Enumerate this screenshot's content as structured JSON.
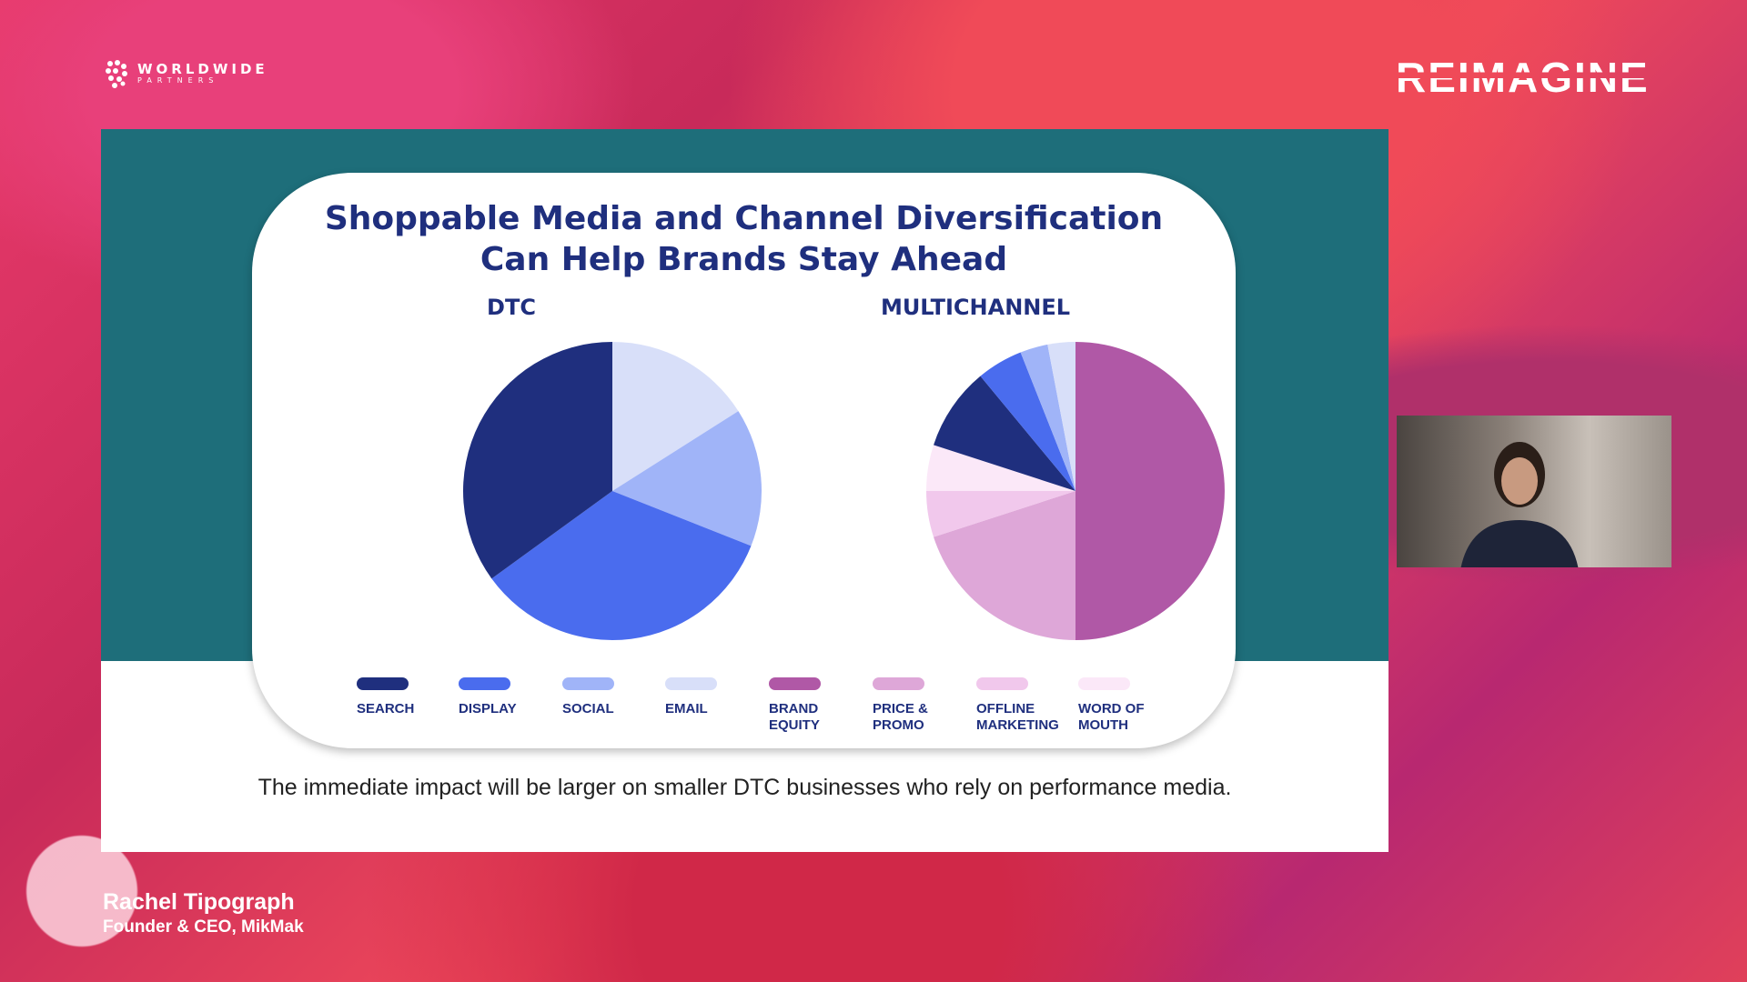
{
  "logo": {
    "line1": "WORLDWIDE",
    "line2": "PARTNERS"
  },
  "event_logo": "REIMAGINE",
  "slide": {
    "title_line1": "Shoppable Media and Channel Diversification",
    "title_line2": "Can Help Brands Stay Ahead",
    "caption": "The immediate impact will be larger on smaller DTC businesses who rely on performance media."
  },
  "chart_data": [
    {
      "type": "pie",
      "title": "DTC",
      "start": "12 o'clock",
      "direction": "clockwise",
      "categories": [
        "EMAIL",
        "SOCIAL",
        "DISPLAY",
        "SEARCH"
      ],
      "values": [
        16,
        15,
        34,
        35
      ],
      "colors": [
        "#d8dff9",
        "#a0b4f8",
        "#4a6cee",
        "#1f2f7e"
      ]
    },
    {
      "type": "pie",
      "title": "MULTICHANNEL",
      "start": "12 o'clock",
      "direction": "clockwise",
      "categories": [
        "BRAND EQUITY",
        "PRICE & PROMO",
        "OFFLINE MARKETING",
        "WORD OF MOUTH",
        "SEARCH",
        "DISPLAY",
        "SOCIAL",
        "EMAIL"
      ],
      "values": [
        50,
        20,
        5,
        5,
        9,
        5,
        3,
        3
      ],
      "colors": [
        "#b058a6",
        "#dea7d8",
        "#f1c8ec",
        "#fbe8f8",
        "#1f2f7e",
        "#4a6cee",
        "#a0b4f8",
        "#d8dff9"
      ]
    }
  ],
  "legend": [
    {
      "label": "SEARCH",
      "color": "#1f2f7e"
    },
    {
      "label": "DISPLAY",
      "color": "#4a6cee"
    },
    {
      "label": "SOCIAL",
      "color": "#a0b4f8"
    },
    {
      "label": "EMAIL",
      "color": "#d8dff9"
    },
    {
      "label": "BRAND EQUITY",
      "color": "#b058a6"
    },
    {
      "label": "PRICE & PROMO",
      "color": "#dea7d8"
    },
    {
      "label": "OFFLINE MARKETING",
      "color": "#f1c8ec"
    },
    {
      "label": "WORD OF MOUTH",
      "color": "#fbe8f8"
    }
  ],
  "speaker": {
    "name": "Rachel Tipograph",
    "role": "Founder & CEO, MikMak"
  },
  "colors": {
    "teal": "#1e6e7a",
    "title": "#1f2f7e"
  }
}
